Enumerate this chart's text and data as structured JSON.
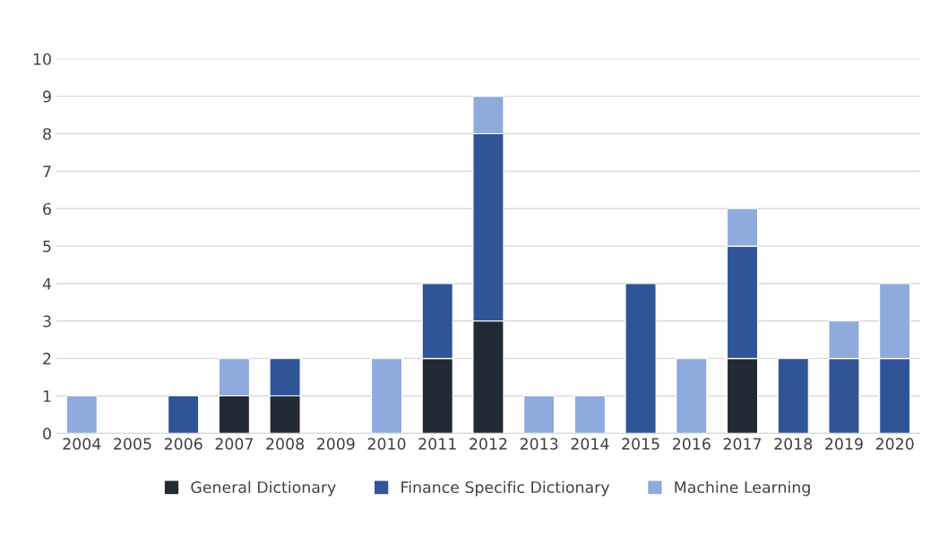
{
  "chart_data": {
    "type": "bar",
    "stacked": true,
    "categories": [
      "2004",
      "2005",
      "2006",
      "2007",
      "2008",
      "2009",
      "2010",
      "2011",
      "2012",
      "2013",
      "2014",
      "2015",
      "2016",
      "2017",
      "2018",
      "2019",
      "2020"
    ],
    "series": [
      {
        "name": "General Dictionary",
        "color": "#222a35",
        "values": [
          0,
          0,
          0,
          1,
          1,
          0,
          0,
          2,
          3,
          0,
          0,
          0,
          0,
          2,
          0,
          0,
          0
        ]
      },
      {
        "name": "Finance Specific Dictionary",
        "color": "#2f5597",
        "values": [
          0,
          0,
          1,
          0,
          1,
          0,
          0,
          2,
          5,
          0,
          0,
          4,
          0,
          3,
          2,
          2,
          2
        ]
      },
      {
        "name": "Machine Learning",
        "color": "#8faadc",
        "values": [
          1,
          0,
          0,
          1,
          0,
          0,
          2,
          0,
          1,
          1,
          1,
          0,
          2,
          1,
          0,
          1,
          2
        ]
      }
    ],
    "ylim": [
      0,
      10
    ],
    "yticks": [
      0,
      1,
      2,
      3,
      4,
      5,
      6,
      7,
      8,
      9,
      10
    ],
    "grid": "y",
    "legend": "bottom"
  }
}
